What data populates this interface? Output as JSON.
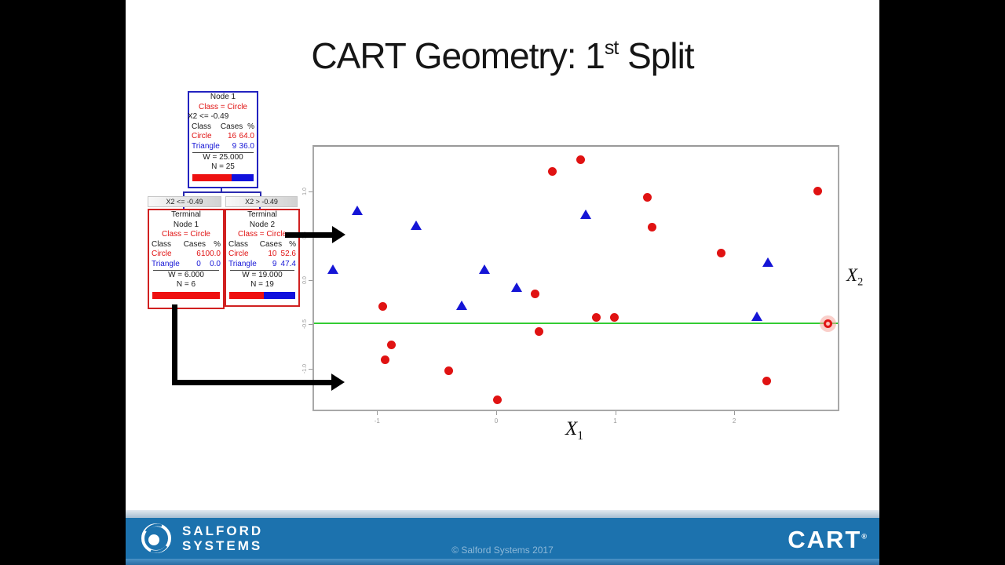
{
  "slide": {
    "title_prefix": "CART Geometry: 1",
    "title_sup": "st",
    "title_suffix": " Split"
  },
  "tree": {
    "root": {
      "name": "Node 1",
      "class_label": "Class = Circle",
      "rule": "X2 <= -0.49",
      "col_headers": [
        "Class",
        "Cases",
        "%"
      ],
      "rows": [
        {
          "label": "Circle",
          "cases": "16",
          "pct": "64.0"
        },
        {
          "label": "Triangle",
          "cases": "9",
          "pct": "36.0"
        }
      ],
      "w": "W = 25.000",
      "n": "N = 25",
      "red_pct": 64.0
    },
    "branch_left": "X2 <= -0.49",
    "branch_right": "X2 > -0.49",
    "terminal1": {
      "name_line1": "Terminal",
      "name_line2": "Node 1",
      "class_label": "Class = Circle",
      "col_headers": [
        "Class",
        "Cases",
        "%"
      ],
      "rows": [
        {
          "label": "Circle",
          "cases": "6",
          "pct": "100.0"
        },
        {
          "label": "Triangle",
          "cases": "0",
          "pct": "0.0"
        }
      ],
      "w": "W = 6.000",
      "n": "N = 6",
      "red_pct": 100.0
    },
    "terminal2": {
      "name_line1": "Terminal",
      "name_line2": "Node 2",
      "class_label": "Class = Circle",
      "col_headers": [
        "Class",
        "Cases",
        "%"
      ],
      "rows": [
        {
          "label": "Circle",
          "cases": "10",
          "pct": "52.6"
        },
        {
          "label": "Triangle",
          "cases": "9",
          "pct": "47.4"
        }
      ],
      "w": "W = 19.000",
      "n": "N = 19",
      "red_pct": 52.6
    }
  },
  "chart_data": {
    "type": "scatter",
    "title": "",
    "xlabel_base": "X",
    "xlabel_sub": "1",
    "ylabel_base": "X",
    "ylabel_sub": "2",
    "xlim": [
      -1.53,
      2.87
    ],
    "ylim": [
      -1.46,
      1.5
    ],
    "x_ticks": [
      "-1",
      "0",
      "1",
      "2"
    ],
    "x_tick_values": [
      -1,
      0,
      1,
      2
    ],
    "y_ticks": [
      "1.0",
      "0.5",
      "0.0",
      "-0.5",
      "-1.0"
    ],
    "y_tick_values": [
      1.0,
      0.5,
      0.0,
      -0.5,
      -1.0
    ],
    "grid": false,
    "legend": "none",
    "split_line": {
      "axis": "X2",
      "value": -0.49,
      "color": "#33cc33"
    },
    "series": [
      {
        "name": "Circle",
        "marker": "circle",
        "color": "#e01212",
        "points": [
          [
            0.47,
            1.22
          ],
          [
            0.71,
            1.35
          ],
          [
            1.27,
            0.93
          ],
          [
            1.31,
            0.59
          ],
          [
            1.89,
            0.3
          ],
          [
            2.7,
            1.0
          ],
          [
            -0.95,
            -0.3
          ],
          [
            0.33,
            -0.16
          ],
          [
            0.84,
            -0.42
          ],
          [
            0.99,
            -0.42
          ],
          [
            0.36,
            -0.58
          ],
          [
            -0.88,
            -0.73
          ],
          [
            -0.93,
            -0.9
          ],
          [
            -0.4,
            -1.02
          ],
          [
            2.27,
            -1.14
          ],
          [
            0.01,
            -1.35
          ]
        ]
      },
      {
        "name": "Triangle",
        "marker": "triangle",
        "color": "#1515d6",
        "points": [
          [
            -1.17,
            0.77
          ],
          [
            -0.67,
            0.6
          ],
          [
            0.75,
            0.72
          ],
          [
            2.28,
            0.18
          ],
          [
            -1.37,
            0.1
          ],
          [
            -0.1,
            0.1
          ],
          [
            0.17,
            -0.1
          ],
          [
            -0.29,
            -0.3
          ],
          [
            2.19,
            -0.43
          ]
        ]
      }
    ],
    "highlighted_point": {
      "x": 2.79,
      "y": -0.49,
      "marker": "circle",
      "color": "#e01212"
    }
  },
  "footer": {
    "logo_icon": "salford-swirl-icon",
    "logo_line1": "SALFORD",
    "logo_line2": "SYSTEMS",
    "copyright": "© Salford Systems 2017",
    "product_logo": "CART",
    "product_logo_reg": "®",
    "bar_color": "#1c72ae"
  },
  "colors": {
    "circle_red": "#e01212",
    "triangle_blue": "#1515d6",
    "split_green": "#33cc33",
    "footer_blue": "#1c72ae",
    "root_border_blue": "#2323c0",
    "terminal_border_red": "#d02020"
  }
}
